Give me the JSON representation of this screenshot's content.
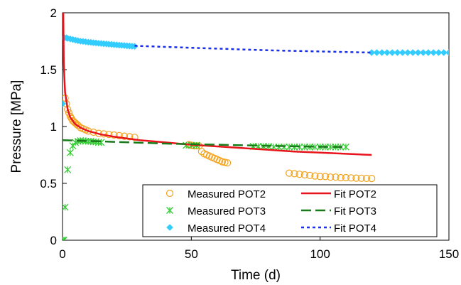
{
  "chart_data": {
    "type": "scatter",
    "xlabel": "Time (d)",
    "ylabel": "Pressure [MPa]",
    "xlim": [
      0,
      150
    ],
    "ylim": [
      0,
      2
    ],
    "xticks": [
      "0",
      "50",
      "100",
      "150"
    ],
    "yticks": [
      "0",
      "0.5",
      "1",
      "1.5",
      "2"
    ],
    "grid": false,
    "legend_position": "bottom-right",
    "series": [
      {
        "name": "Measured POT2",
        "kind": "scatter",
        "marker": "circle",
        "color": "#f5a21b",
        "x": [
          1,
          1.5,
          2,
          2.5,
          3,
          3.5,
          4,
          4.5,
          5,
          5.5,
          6,
          7,
          8,
          9,
          10,
          12,
          14,
          16,
          18,
          20,
          22,
          24,
          26,
          28,
          49,
          50,
          51,
          52,
          53,
          54,
          55,
          56,
          57,
          58,
          59,
          60,
          61,
          62,
          63,
          64,
          88,
          90,
          92,
          94,
          96,
          98,
          100,
          102,
          104,
          106,
          108,
          110,
          112,
          114,
          116,
          118,
          120
        ],
        "y": [
          1.25,
          1.2,
          1.15,
          1.12,
          1.09,
          1.07,
          1.05,
          1.04,
          1.03,
          1.02,
          1.01,
          0.99,
          0.98,
          0.97,
          0.96,
          0.95,
          0.94,
          0.935,
          0.93,
          0.925,
          0.92,
          0.915,
          0.91,
          0.905,
          0.84,
          0.835,
          0.83,
          0.83,
          0.83,
          0.78,
          0.76,
          0.75,
          0.74,
          0.73,
          0.72,
          0.71,
          0.7,
          0.69,
          0.685,
          0.68,
          0.59,
          0.585,
          0.58,
          0.575,
          0.57,
          0.565,
          0.56,
          0.56,
          0.555,
          0.555,
          0.55,
          0.55,
          0.548,
          0.546,
          0.545,
          0.544,
          0.543
        ]
      },
      {
        "name": "Measured POT3",
        "kind": "scatter",
        "marker": "x",
        "color": "#33cc33",
        "x": [
          0,
          0.5,
          1,
          2,
          3,
          4,
          5,
          6,
          7,
          8,
          9,
          10,
          11,
          12,
          13,
          14,
          15,
          48,
          50,
          52,
          74,
          76,
          78,
          80,
          82,
          84,
          86,
          88,
          90,
          92,
          94,
          96,
          98,
          100,
          102,
          104,
          106,
          108,
          110
        ],
        "y": [
          0,
          0,
          0.29,
          0.62,
          0.77,
          0.83,
          0.86,
          0.87,
          0.875,
          0.875,
          0.87,
          0.87,
          0.87,
          0.865,
          0.865,
          0.86,
          0.86,
          0.835,
          0.835,
          0.835,
          0.825,
          0.825,
          0.825,
          0.825,
          0.82,
          0.82,
          0.82,
          0.82,
          0.82,
          0.82,
          0.82,
          0.82,
          0.82,
          0.82,
          0.82,
          0.82,
          0.82,
          0.82,
          0.82
        ]
      },
      {
        "name": "Measured POT4",
        "kind": "scatter",
        "marker": "diamond",
        "color": "#33ccff",
        "x": [
          0,
          0.7,
          1.5,
          2,
          3,
          4,
          5,
          6,
          7,
          8,
          9,
          10,
          11,
          12,
          13,
          14,
          15,
          16,
          17,
          18,
          19,
          20,
          21,
          22,
          23,
          24,
          25,
          26,
          27,
          28,
          120,
          122,
          124,
          126,
          128,
          130,
          132,
          134,
          136,
          138,
          140,
          142,
          144,
          146,
          148,
          150
        ],
        "y": [
          1.2,
          1.78,
          1.78,
          1.775,
          1.77,
          1.765,
          1.76,
          1.755,
          1.75,
          1.748,
          1.745,
          1.742,
          1.74,
          1.737,
          1.735,
          1.732,
          1.73,
          1.728,
          1.726,
          1.724,
          1.722,
          1.72,
          1.718,
          1.716,
          1.714,
          1.712,
          1.71,
          1.708,
          1.706,
          1.705,
          1.65,
          1.65,
          1.65,
          1.65,
          1.65,
          1.65,
          1.65,
          1.65,
          1.65,
          1.65,
          1.65,
          1.65,
          1.65,
          1.65,
          1.65,
          1.65
        ]
      },
      {
        "name": "Fit POT2",
        "kind": "line",
        "dash": "solid",
        "color": "#e8141c",
        "x": [
          0.3,
          0.5,
          1,
          2,
          3,
          5,
          7,
          10,
          15,
          20,
          30,
          40,
          50,
          60,
          70,
          80,
          90,
          100,
          110,
          120
        ],
        "y": [
          2.0,
          1.55,
          1.3,
          1.15,
          1.08,
          1.02,
          0.99,
          0.96,
          0.93,
          0.91,
          0.88,
          0.86,
          0.84,
          0.825,
          0.81,
          0.795,
          0.78,
          0.77,
          0.76,
          0.75
        ]
      },
      {
        "name": "Fit POT3",
        "kind": "line",
        "dash": "dashed",
        "color": "#1a7a1a",
        "x": [
          0,
          20,
          40,
          60,
          80,
          100,
          110
        ],
        "y": [
          0.88,
          0.865,
          0.85,
          0.84,
          0.83,
          0.822,
          0.82
        ]
      },
      {
        "name": "Fit POT4",
        "kind": "line",
        "dash": "dotted",
        "color": "#1a2ee6",
        "x": [
          28,
          40,
          60,
          80,
          100,
          120
        ],
        "y": [
          1.71,
          1.7,
          1.685,
          1.67,
          1.66,
          1.65
        ]
      }
    ]
  }
}
